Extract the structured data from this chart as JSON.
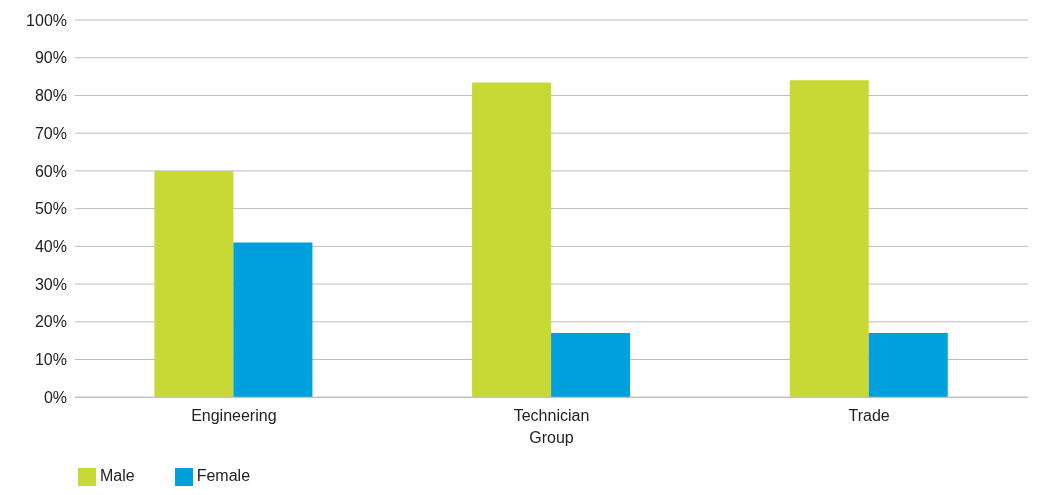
{
  "chart_data": {
    "type": "bar",
    "categories": [
      "Engineering",
      "Technician Group",
      "Trade"
    ],
    "series": [
      {
        "name": "Male",
        "color": "#c8d935",
        "values": [
          60,
          83.4,
          84
        ]
      },
      {
        "name": "Female",
        "color": "#00a0dc",
        "values": [
          41,
          17,
          17
        ]
      }
    ],
    "ylim": [
      0,
      100
    ],
    "yticks": [
      {
        "value": 0,
        "label": "0%"
      },
      {
        "value": 10,
        "label": "10%"
      },
      {
        "value": 20,
        "label": "20%"
      },
      {
        "value": 30,
        "label": "30%"
      },
      {
        "value": 40,
        "label": "40%"
      },
      {
        "value": 50,
        "label": "50%"
      },
      {
        "value": 60,
        "label": "60%"
      },
      {
        "value": 70,
        "label": "70%"
      },
      {
        "value": 80,
        "label": "80%"
      },
      {
        "value": 90,
        "label": "90%"
      },
      {
        "value": 100,
        "label": "100%"
      }
    ],
    "grid": "y",
    "legend": "bottom left"
  }
}
